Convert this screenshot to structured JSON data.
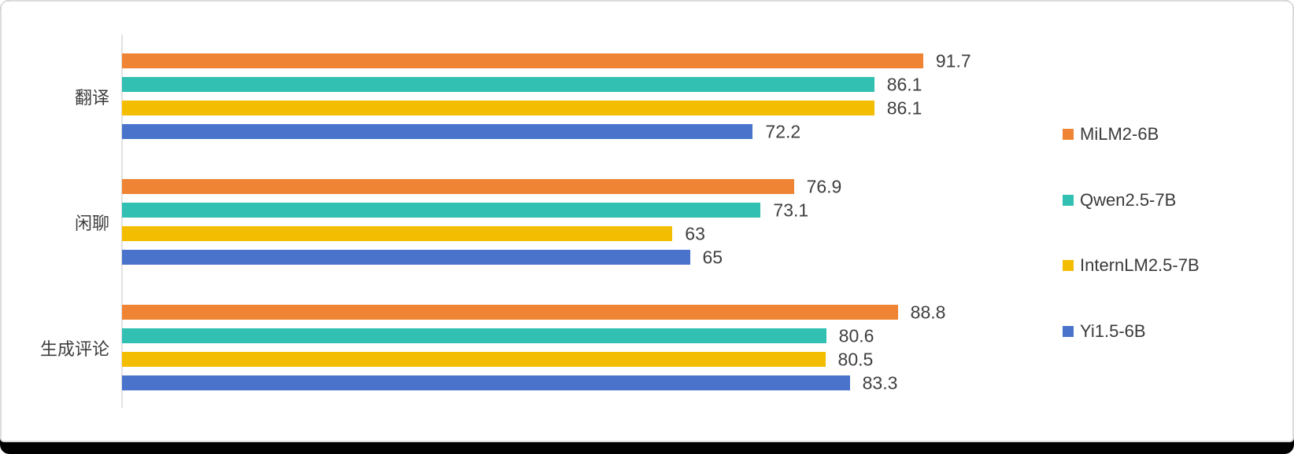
{
  "chart_data": {
    "type": "bar",
    "orientation": "horizontal",
    "title": "",
    "xlabel": "",
    "ylabel": "",
    "categories": [
      "翻译",
      "闲聊",
      "生成评论"
    ],
    "series": [
      {
        "name": "MiLM2-6B",
        "color": "#ee8434",
        "values": [
          91.7,
          76.9,
          88.8
        ]
      },
      {
        "name": "Qwen2.5-7B",
        "color": "#32c0b2",
        "values": [
          86.1,
          73.1,
          80.6
        ]
      },
      {
        "name": "InternLM2.5-7B",
        "color": "#f3be02",
        "values": [
          86.1,
          63,
          80.5
        ]
      },
      {
        "name": "Yi1.5-6B",
        "color": "#4a73cb",
        "values": [
          72.2,
          65,
          83.3
        ]
      }
    ],
    "xlim": [
      0,
      100
    ],
    "grid": false,
    "value_labels": true,
    "legend_position": "right"
  },
  "colors": {
    "axis_line": "#e2e2e2",
    "label_text": "#3d3d3d",
    "value_text": "#3f3f3f",
    "card_border": "#dcdcdc",
    "frame_background": "#000000",
    "card_background": "#ffffff"
  }
}
